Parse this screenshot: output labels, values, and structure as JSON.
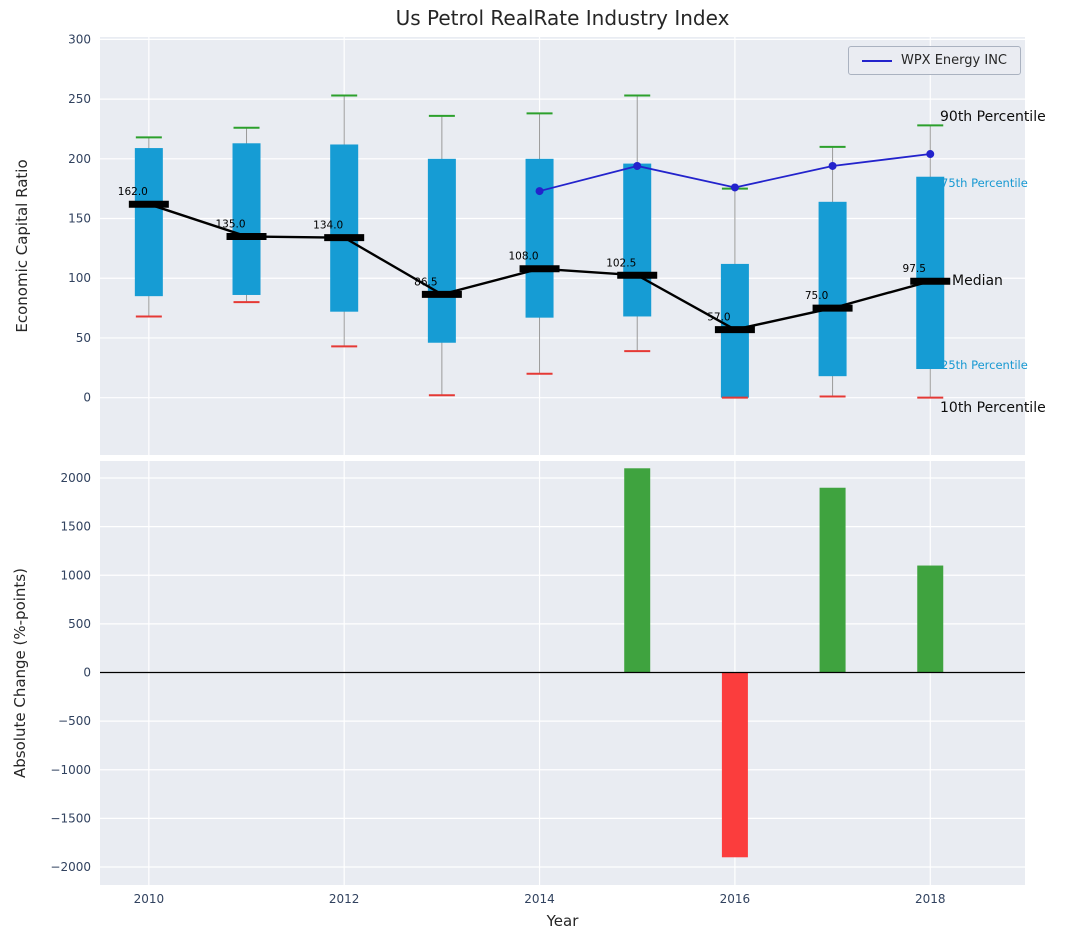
{
  "title": "Us Petrol RealRate Industry Index",
  "legend": {
    "label": "WPX Energy INC"
  },
  "annotations": {
    "p90": "90th Percentile",
    "p75": "75th Percentile",
    "median": "Median",
    "p25": "25th Percentile",
    "p10": "10th Percentile"
  },
  "colors": {
    "bar": "#169CD4",
    "whisker": "#9A9A9A",
    "cap_high": "#2CA02C",
    "cap_low": "#E53935",
    "median": "#000000",
    "wpx_line": "#2323CC",
    "positive": "#3FA33F",
    "negative": "#FB3D3D",
    "plot_bg": "#E9ECF2",
    "grid": "#FFFFFF",
    "tick_text": "#31425F",
    "annotation_accent": "#1899D2",
    "text": "#262626"
  },
  "chart_data": [
    {
      "type": "box",
      "title": "Us Petrol RealRate Industry Index",
      "ylabel": "Economic Capital Ratio",
      "ylim": [
        -48,
        302
      ],
      "yticks": [
        300,
        250,
        200,
        150,
        100,
        50,
        0
      ],
      "grid": true,
      "legend_position": "upper right",
      "years": [
        2010,
        2011,
        2012,
        2013,
        2014,
        2015,
        2016,
        2017,
        2018
      ],
      "p90": [
        218,
        226,
        253,
        236,
        238,
        253,
        175,
        210,
        228
      ],
      "p75": [
        209,
        213,
        212,
        200,
        200,
        196,
        112,
        164,
        185
      ],
      "median": [
        162,
        135,
        134,
        86.5,
        108,
        102.5,
        57,
        75,
        97.5
      ],
      "p25": [
        85,
        86,
        72,
        46,
        67,
        68,
        0,
        18,
        24
      ],
      "p10": [
        68,
        80,
        43,
        2,
        20,
        39,
        0,
        1,
        0
      ],
      "median_labels": [
        "162.0",
        "135.0",
        "134.0",
        "86.5",
        "108.0",
        "102.5",
        "57.0",
        "75.0",
        "97.5"
      ],
      "series": [
        {
          "name": "WPX Energy INC",
          "x": [
            2014,
            2015,
            2016,
            2017,
            2018
          ],
          "y": [
            173,
            194,
            176,
            194,
            204
          ]
        }
      ]
    },
    {
      "type": "bar",
      "ylabel": "Absolute Change (%-points)",
      "xlabel": "Year",
      "ylim": [
        -2185,
        2175
      ],
      "yticks": [
        2000,
        1500,
        1000,
        500,
        0,
        -500,
        -1000,
        -1500,
        -2000
      ],
      "xticks": [
        2010,
        2012,
        2014,
        2016,
        2018
      ],
      "grid": true,
      "x": [
        2015,
        2016,
        2017,
        2018
      ],
      "values": [
        2100,
        -1900,
        1900,
        1100
      ]
    }
  ]
}
